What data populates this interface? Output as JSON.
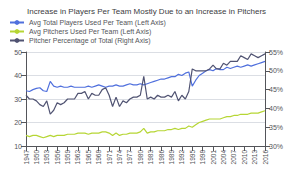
{
  "chart_data": {
    "type": "line",
    "title": "Increase in Players Per Team Mostly Due to an Increase in Pitchers",
    "x": [
      1947,
      1948,
      1949,
      1950,
      1951,
      1952,
      1953,
      1954,
      1955,
      1956,
      1957,
      1958,
      1959,
      1960,
      1961,
      1962,
      1963,
      1964,
      1965,
      1966,
      1967,
      1968,
      1969,
      1970,
      1971,
      1972,
      1973,
      1974,
      1975,
      1976,
      1977,
      1978,
      1979,
      1980,
      1981,
      1982,
      1983,
      1984,
      1985,
      1986,
      1987,
      1988,
      1989,
      1990,
      1991,
      1992,
      1993,
      1994,
      1995,
      1996,
      1997,
      1998,
      1999,
      2000,
      2001,
      2002,
      2003,
      2004,
      2005,
      2006,
      2007,
      2008,
      2009,
      2010,
      2011,
      2012,
      2013,
      2014,
      2015,
      2016
    ],
    "xlim": [
      1947,
      2016
    ],
    "xticks": [
      1947,
      1950,
      1953,
      1956,
      1959,
      1962,
      1965,
      1968,
      1971,
      1974,
      1977,
      1980,
      1983,
      1986,
      1989,
      1992,
      1995,
      1998,
      2001,
      2004,
      2007,
      2010,
      2013,
      2016
    ],
    "ylim": [
      10,
      50
    ],
    "yticks": [
      10,
      20,
      30,
      40,
      50
    ],
    "y2lim": [
      30,
      55
    ],
    "y2ticks": [
      {
        "value": 30,
        "label": "30%"
      },
      {
        "value": 35,
        "label": "35%"
      },
      {
        "value": 40,
        "label": "40%"
      },
      {
        "value": 45,
        "label": "45%"
      },
      {
        "value": 50,
        "label": "50%"
      },
      {
        "value": 55,
        "label": "55%"
      }
    ],
    "grid": true,
    "legend": "upper left",
    "series": [
      {
        "name": "Avg Total Players Used Per Team (Left Axis)",
        "values": [
          33.5,
          33.2,
          34.0,
          34.5,
          34.8,
          33.5,
          33.2,
          37.5,
          35.5,
          35.0,
          35.5,
          35.0,
          35.0,
          35.5,
          35.0,
          35.0,
          35.0,
          35.0,
          35.5,
          35.0,
          35.5,
          36.0,
          35.5,
          35.0,
          35.5,
          35.5,
          36.0,
          35.5,
          35.5,
          36.0,
          36.5,
          36.0,
          36.0,
          36.5,
          36.0,
          36.5,
          37.0,
          37.5,
          38.0,
          38.5,
          38.5,
          39.0,
          39.5,
          39.5,
          40.5,
          40.0,
          41.0,
          41.5,
          35.5,
          38.0,
          40.0,
          41.0,
          42.0,
          42.5,
          42.0,
          43.0,
          42.5,
          42.5,
          43.5,
          43.0,
          43.5,
          44.0,
          43.5,
          44.0,
          44.5,
          44.0,
          44.5,
          45.0,
          45.5,
          46.0
        ]
      },
      {
        "name": "Avg Pitchers Used Per Team (Left Axis)",
        "values": [
          14.5,
          14.0,
          14.5,
          14.5,
          14.0,
          13.5,
          14.0,
          14.5,
          14.0,
          14.5,
          14.5,
          14.5,
          15.0,
          15.0,
          15.0,
          15.5,
          15.5,
          15.5,
          15.0,
          15.5,
          15.5,
          15.5,
          16.0,
          16.0,
          15.5,
          14.5,
          15.5,
          14.5,
          15.0,
          15.0,
          15.5,
          15.5,
          15.5,
          16.0,
          17.5,
          15.5,
          16.0,
          16.0,
          16.5,
          16.5,
          16.5,
          17.0,
          17.0,
          17.5,
          17.0,
          17.5,
          17.5,
          18.5,
          18.0,
          19.0,
          20.0,
          20.5,
          21.0,
          21.5,
          21.5,
          21.5,
          21.5,
          22.0,
          22.5,
          22.5,
          23.0,
          23.0,
          23.5,
          23.5,
          23.5,
          24.0,
          24.0,
          24.0,
          24.5,
          25.0
        ]
      },
      {
        "name": "Pitcher Percentage of Total (Right Axis)",
        "axis": "y2",
        "values": [
          43.5,
          42.5,
          42.5,
          42.0,
          41.0,
          40.5,
          42.0,
          38.5,
          39.5,
          41.5,
          41.0,
          41.5,
          42.5,
          42.5,
          42.5,
          44.0,
          44.0,
          44.5,
          42.5,
          44.0,
          43.5,
          43.5,
          45.0,
          45.5,
          43.5,
          40.5,
          43.0,
          40.5,
          42.0,
          41.5,
          42.5,
          43.0,
          43.0,
          43.5,
          48.5,
          42.5,
          43.0,
          42.5,
          43.5,
          43.0,
          43.0,
          43.5,
          43.0,
          44.5,
          42.0,
          43.5,
          42.5,
          44.5,
          50.5,
          50.0,
          50.0,
          50.0,
          50.0,
          50.5,
          51.5,
          50.5,
          50.5,
          52.0,
          51.5,
          52.5,
          52.5,
          52.5,
          54.0,
          53.5,
          53.0,
          54.5,
          54.0,
          53.5,
          54.0,
          54.5
        ]
      }
    ]
  }
}
